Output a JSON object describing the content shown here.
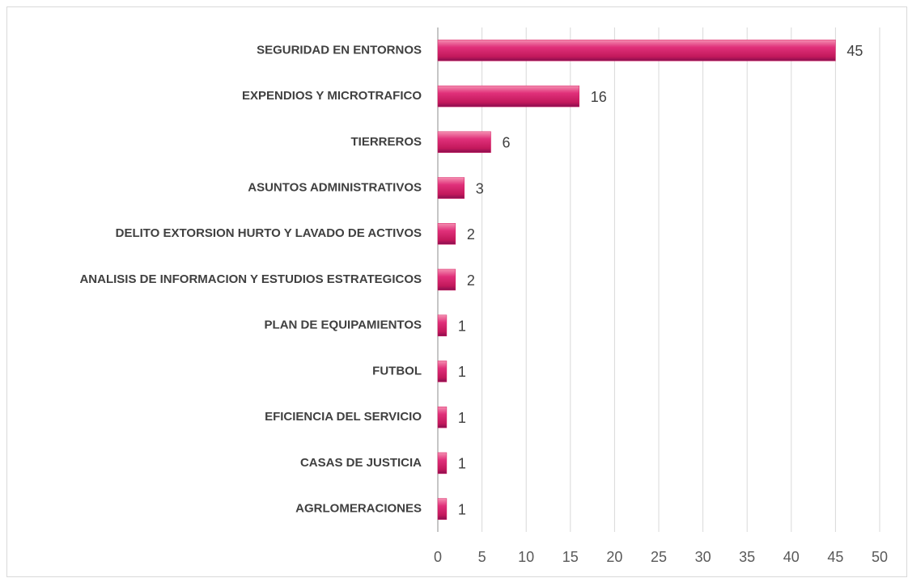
{
  "chart_data": {
    "type": "bar",
    "orientation": "horizontal",
    "categories": [
      "SEGURIDAD EN ENTORNOS",
      "EXPENDIOS Y MICROTRAFICO",
      "TIERREROS",
      "ASUNTOS ADMINISTRATIVOS",
      "DELITO EXTORSION HURTO Y LAVADO DE ACTIVOS",
      "ANALISIS DE INFORMACION Y ESTUDIOS ESTRATEGICOS",
      "PLAN DE EQUIPAMIENTOS",
      "FUTBOL",
      "EFICIENCIA DEL SERVICIO",
      "CASAS DE JUSTICIA",
      "AGRLOMERACIONES"
    ],
    "values": [
      45,
      16,
      6,
      3,
      2,
      2,
      1,
      1,
      1,
      1,
      1
    ],
    "color": "#d81b60",
    "xlim": [
      0,
      50
    ],
    "xticks": [
      0,
      5,
      10,
      15,
      20,
      25,
      30,
      35,
      40,
      45,
      50
    ],
    "grid": true
  }
}
